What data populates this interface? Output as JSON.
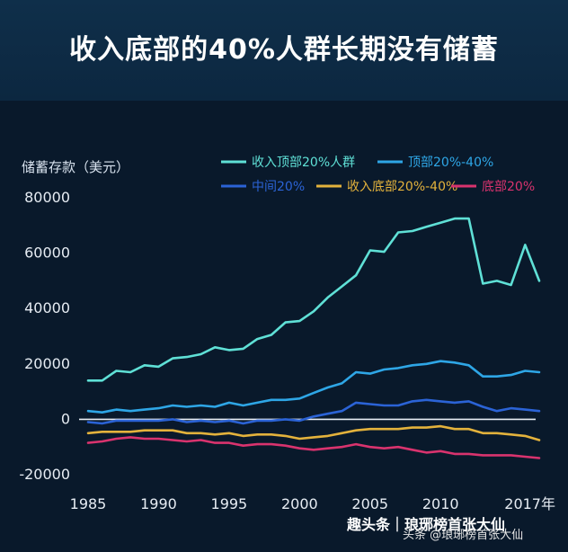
{
  "chart_data": {
    "type": "line",
    "title": "收入底部的40%人群长期没有储蓄",
    "ylabel": "储蓄存款（美元）",
    "ylim": [
      -20000,
      80000
    ],
    "yticks": [
      80000,
      60000,
      40000,
      20000,
      0,
      -20000
    ],
    "xlim": [
      1985,
      2017
    ],
    "xticks": [
      1985,
      1990,
      1995,
      2000,
      2005,
      2010
    ],
    "xlast_label": "2017年",
    "grid": false,
    "legend_position": "top",
    "x": [
      1985,
      1986,
      1987,
      1988,
      1989,
      1990,
      1991,
      1992,
      1993,
      1994,
      1995,
      1996,
      1997,
      1998,
      1999,
      2000,
      2001,
      2002,
      2003,
      2004,
      2005,
      2006,
      2007,
      2008,
      2009,
      2010,
      2011,
      2012,
      2013,
      2014,
      2015,
      2016,
      2017
    ],
    "series": [
      {
        "name": "收入顶部20%人群",
        "color": "#5fe0d6",
        "values": [
          14000,
          14000,
          17500,
          17000,
          19500,
          19000,
          22000,
          22500,
          23500,
          26000,
          25000,
          25500,
          29000,
          30500,
          35000,
          35500,
          39000,
          44000,
          48000,
          52000,
          61000,
          60500,
          67500,
          68000,
          69500,
          71000,
          72500,
          72500,
          49000,
          50000,
          48500,
          63000,
          50000
        ]
      },
      {
        "name": "顶部20%-40%",
        "color": "#2ea6e6",
        "values": [
          3000,
          2500,
          3500,
          3000,
          3500,
          4000,
          5000,
          4500,
          5000,
          4500,
          6000,
          5000,
          6000,
          7000,
          7000,
          7500,
          9500,
          11500,
          13000,
          17000,
          16500,
          18000,
          18500,
          19500,
          20000,
          21000,
          20500,
          19500,
          15500,
          15500,
          16000,
          17500,
          17000
        ]
      },
      {
        "name": "中间20%",
        "color": "#2b63d6",
        "values": [
          -1000,
          -1500,
          -500,
          -500,
          -500,
          -500,
          0,
          -1000,
          -500,
          -1000,
          -500,
          -1500,
          -500,
          -500,
          0,
          -500,
          1000,
          2000,
          3000,
          6000,
          5500,
          5000,
          5000,
          6500,
          7000,
          6500,
          6000,
          6500,
          4500,
          3000,
          4000,
          3500,
          3000
        ]
      },
      {
        "name": "收入底部20%-40%",
        "color": "#e3b23c",
        "values": [
          -5000,
          -4500,
          -4500,
          -4500,
          -4000,
          -4000,
          -4000,
          -5000,
          -5000,
          -5500,
          -5000,
          -6000,
          -5500,
          -5500,
          -6000,
          -7000,
          -6500,
          -6000,
          -5000,
          -4000,
          -3500,
          -3500,
          -3500,
          -3000,
          -3000,
          -2500,
          -3500,
          -3500,
          -5000,
          -5000,
          -5500,
          -6000,
          -7500
        ]
      },
      {
        "name": "底部20%",
        "color": "#d9336e",
        "values": [
          -8500,
          -8000,
          -7000,
          -6500,
          -7000,
          -7000,
          -7500,
          -8000,
          -7500,
          -8500,
          -8500,
          -9500,
          -9000,
          -9000,
          -9500,
          -10500,
          -11000,
          -10500,
          -10000,
          -9000,
          -10000,
          -10500,
          -10000,
          -11000,
          -12000,
          -11500,
          -12500,
          -12500,
          -13000,
          -13000,
          -13000,
          -13500,
          -14000
        ]
      }
    ]
  },
  "watermark": {
    "line1": "趣头条｜琅琊榜首张大仙",
    "line2": "头条 @琅琊榜首张大仙"
  }
}
